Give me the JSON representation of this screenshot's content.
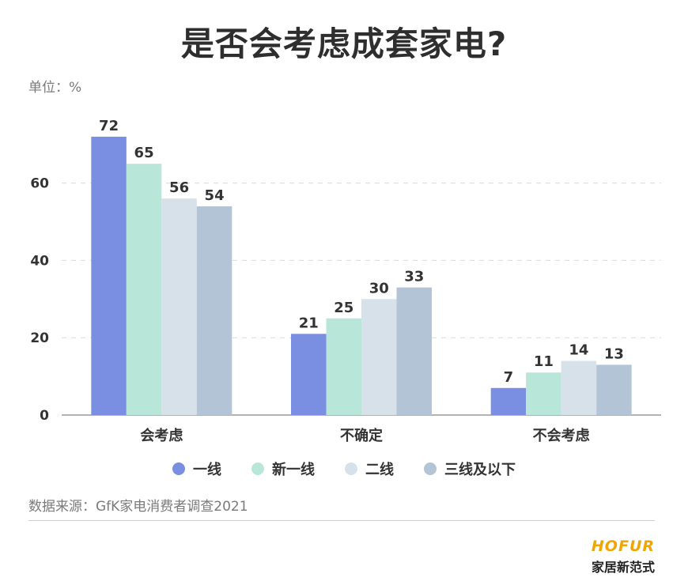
{
  "title": "是否会考虑成套家电?",
  "unit": "单位：%",
  "source": "数据来源：GfK家电消费者调查2021",
  "brand": {
    "name_en": "HOFUR",
    "name_cn": "家居新范式"
  },
  "chart_data": {
    "type": "bar",
    "categories": [
      "会考虑",
      "不确定",
      "不会考虑"
    ],
    "series": [
      {
        "name": "一线",
        "color": "#7b8fe2",
        "values": [
          72,
          21,
          7
        ]
      },
      {
        "name": "新一线",
        "color": "#b8e7da",
        "values": [
          65,
          25,
          11
        ]
      },
      {
        "name": "二线",
        "color": "#d7e1ea",
        "values": [
          56,
          30,
          14
        ]
      },
      {
        "name": "三线及以下",
        "color": "#b3c4d6",
        "values": [
          54,
          33,
          13
        ]
      }
    ],
    "yticks": [
      0,
      20,
      40,
      60
    ],
    "ylim": [
      0,
      75
    ],
    "grid": true,
    "legend": "bottom"
  }
}
